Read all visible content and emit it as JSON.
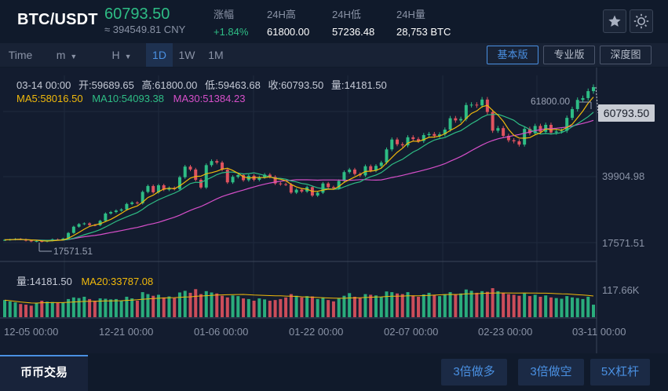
{
  "header": {
    "pair": "BTC/USDT",
    "last_price": "60793.50",
    "cny_value": "≈ 394549.81 CNY",
    "stats": [
      {
        "label": "涨幅",
        "value": "+1.84%",
        "tone": "up"
      },
      {
        "label": "24H高",
        "value": "61800.00",
        "tone": "neutral"
      },
      {
        "label": "24H低",
        "value": "57236.48",
        "tone": "neutral"
      },
      {
        "label": "24H量",
        "value": "28,753 BTC",
        "tone": "neutral"
      }
    ],
    "icons": [
      "star-icon",
      "theme-icon"
    ]
  },
  "toolbar": {
    "time_label": "Time",
    "minute_label": "m",
    "hour_label": "H",
    "intervals": [
      "1D",
      "1W",
      "1M"
    ],
    "active_interval": "1D",
    "versions": [
      "基本版",
      "专业版",
      "深度图"
    ],
    "active_version": "基本版"
  },
  "legend": {
    "date": "03-14 00:00",
    "open": "开:59689.65",
    "high": "高:61800.00",
    "low": "低:59463.68",
    "close": "收:60793.50",
    "volume": "量:14181.50",
    "ma5": "MA5:58016.50",
    "ma10": "MA10:54093.38",
    "ma30": "MA30:51384.23",
    "vol_now": "量:14181.50",
    "vol_ma20": "MA20:33787.08"
  },
  "colors": {
    "up": "#2ebd85",
    "down": "#e0535f",
    "ma5": "#f0b90b",
    "ma10": "#2ebd85",
    "ma30": "#d64fc9",
    "accent": "#4a90e2"
  },
  "chart_data": {
    "type": "candlestick",
    "interval": "1D",
    "x_ticks": [
      "12-05 00:00",
      "12-21 00:00",
      "01-06 00:00",
      "01-22 00:00",
      "02-07 00:00",
      "02-23 00:00",
      "03-11 00:00"
    ],
    "y_ticks": [
      "39904.98",
      "17571.51"
    ],
    "current_price_tag": "60793.50",
    "max_annotation": "61800.00",
    "min_annotation": "17571.51",
    "volume_axis_label": "117.66K",
    "ylim": [
      16000,
      64000
    ],
    "closes": [
      19100,
      19200,
      19350,
      19250,
      18900,
      18700,
      18800,
      18650,
      18900,
      19250,
      19150,
      19450,
      21000,
      22700,
      23400,
      23600,
      23150,
      23100,
      24300,
      26300,
      26700,
      27100,
      27400,
      28900,
      29300,
      29100,
      32200,
      33800,
      32100,
      34000,
      32800,
      33300,
      33000,
      36200,
      39100,
      38300,
      35500,
      33400,
      39500,
      40600,
      40200,
      38300,
      34800,
      36300,
      36800,
      35400,
      36600,
      35500,
      36200,
      36900,
      36300,
      34500,
      34300,
      34200,
      32000,
      32800,
      32300,
      33500,
      31200,
      32000,
      34500,
      33500,
      33200,
      35200,
      37600,
      38300,
      37100,
      36700,
      39200,
      38000,
      39300,
      40200,
      43800,
      46500,
      45200,
      44900,
      47100,
      46600,
      46100,
      47700,
      48000,
      47500,
      47900,
      49200,
      52300,
      51700,
      52100,
      55900,
      56000,
      55800,
      57400,
      54000,
      48900,
      49600,
      47500,
      46300,
      46000,
      45100,
      49400,
      48200,
      50200,
      48600,
      50500,
      48400,
      48700,
      48900,
      52400,
      54800,
      57300,
      57800,
      59700,
      60793.5
    ],
    "volumes": [
      52,
      48,
      45,
      40,
      38,
      35,
      42,
      50,
      47,
      46,
      44,
      45,
      55,
      60,
      58,
      62,
      55,
      50,
      57,
      56,
      54,
      55,
      50,
      62,
      57,
      50,
      76,
      70,
      65,
      68,
      60,
      63,
      58,
      75,
      80,
      74,
      85,
      70,
      79,
      75,
      72,
      65,
      60,
      66,
      64,
      57,
      55,
      50,
      57,
      54,
      50,
      52,
      55,
      60,
      70,
      65,
      60,
      64,
      63,
      55,
      60,
      52,
      48,
      58,
      65,
      73,
      62,
      58,
      70,
      68,
      66,
      61,
      78,
      76,
      72,
      70,
      76,
      66,
      62,
      69,
      74,
      68,
      64,
      70,
      76,
      70,
      72,
      84,
      80,
      74,
      79,
      77,
      88,
      79,
      74,
      70,
      68,
      65,
      72,
      64,
      68,
      62,
      66,
      60,
      58,
      56,
      64,
      60,
      58,
      55,
      62,
      38
    ]
  },
  "footer": {
    "active_tab": "币币交易",
    "buttons": [
      "3倍做多",
      "3倍做空",
      "5X杠杆"
    ]
  }
}
